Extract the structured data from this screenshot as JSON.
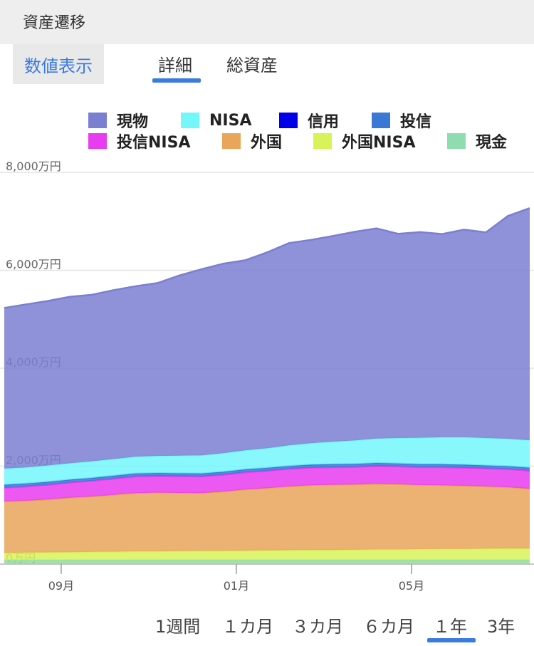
{
  "header": {
    "title": "資産遷移"
  },
  "view_toggle": {
    "numeric_label": "数値表示"
  },
  "tabs": [
    {
      "label": "詳細",
      "active": true
    },
    {
      "label": "総資産",
      "active": false
    }
  ],
  "legend": [
    {
      "name": "現物",
      "color": "#7b7fd1"
    },
    {
      "name": "NISA",
      "color": "#74f7fb"
    },
    {
      "name": "信用",
      "color": "#0000e8"
    },
    {
      "name": "投信",
      "color": "#3a78d6"
    },
    {
      "name": "投信NISA",
      "color": "#e83cf0"
    },
    {
      "name": "外国",
      "color": "#e9a55a"
    },
    {
      "name": "外国NISA",
      "color": "#d8f25a"
    },
    {
      "name": "現金",
      "color": "#8fdcb0"
    }
  ],
  "ranges": [
    {
      "label": "1週間",
      "active": false
    },
    {
      "label": "１カ月",
      "active": false
    },
    {
      "label": "３カ月",
      "active": false
    },
    {
      "label": "６カ月",
      "active": false
    },
    {
      "label": "１年",
      "active": true
    },
    {
      "label": "3年",
      "active": false
    }
  ],
  "chart_data": {
    "type": "area",
    "stacked": true,
    "ylim": [
      0,
      8000
    ],
    "yticks": [
      "0万円",
      "2,000万円",
      "4,000万円",
      "6,000万円",
      "8,000万円"
    ],
    "ytick_values": [
      0,
      2000,
      4000,
      6000,
      8000
    ],
    "xticks": [
      "09月",
      "01月",
      "05月"
    ],
    "xtick_positions": [
      1.3,
      5.3,
      9.3
    ],
    "x": [
      0,
      0.5,
      1,
      1.5,
      2,
      2.5,
      3,
      3.5,
      4,
      4.5,
      5,
      5.5,
      6,
      6.5,
      7,
      7.5,
      8,
      8.5,
      9,
      9.5,
      10,
      10.5,
      11,
      11.5,
      12
    ],
    "series": [
      {
        "name": "現金",
        "color": "#8fdcb0",
        "values": [
          80,
          80,
          80,
          80,
          80,
          80,
          80,
          80,
          80,
          80,
          80,
          80,
          80,
          80,
          80,
          80,
          80,
          80,
          80,
          80,
          80,
          80,
          80,
          80,
          80
        ]
      },
      {
        "name": "外国NISA",
        "color": "#d8f25a",
        "values": [
          150,
          155,
          160,
          165,
          170,
          175,
          180,
          180,
          185,
          190,
          190,
          195,
          200,
          205,
          210,
          210,
          215,
          220,
          220,
          225,
          230,
          230,
          235,
          240,
          240
        ]
      },
      {
        "name": "外国",
        "color": "#e9a55a",
        "values": [
          1050,
          1060,
          1080,
          1110,
          1130,
          1160,
          1190,
          1200,
          1190,
          1180,
          1210,
          1250,
          1270,
          1300,
          1320,
          1330,
          1330,
          1340,
          1330,
          1310,
          1300,
          1290,
          1270,
          1250,
          1220
        ]
      },
      {
        "name": "投信NISA",
        "color": "#e83cf0",
        "values": [
          280,
          290,
          300,
          310,
          320,
          330,
          340,
          340,
          340,
          340,
          345,
          350,
          355,
          360,
          360,
          360,
          360,
          365,
          365,
          365,
          370,
          370,
          370,
          370,
          370
        ]
      },
      {
        "name": "投信",
        "color": "#3a78d6",
        "values": [
          60,
          60,
          60,
          60,
          60,
          60,
          60,
          60,
          60,
          60,
          60,
          60,
          60,
          60,
          60,
          60,
          60,
          60,
          60,
          60,
          60,
          60,
          60,
          60,
          60
        ]
      },
      {
        "name": "信用",
        "color": "#0000e8",
        "values": [
          0,
          0,
          0,
          0,
          0,
          0,
          0,
          0,
          0,
          0,
          0,
          0,
          0,
          0,
          0,
          0,
          0,
          0,
          0,
          0,
          0,
          0,
          0,
          0,
          0
        ]
      },
      {
        "name": "NISA",
        "color": "#74f7fb",
        "values": [
          330,
          330,
          335,
          335,
          340,
          340,
          345,
          350,
          360,
          370,
          380,
          390,
          400,
          420,
          440,
          460,
          480,
          500,
          520,
          540,
          550,
          560,
          560,
          560,
          560
        ]
      },
      {
        "name": "現物",
        "color": "#7b7fd1",
        "values": [
          3280,
          3330,
          3360,
          3400,
          3400,
          3450,
          3480,
          3530,
          3680,
          3800,
          3870,
          3880,
          4000,
          4130,
          4150,
          4200,
          4260,
          4290,
          4170,
          4200,
          4150,
          4240,
          4200,
          4550,
          4740
        ]
      }
    ]
  }
}
